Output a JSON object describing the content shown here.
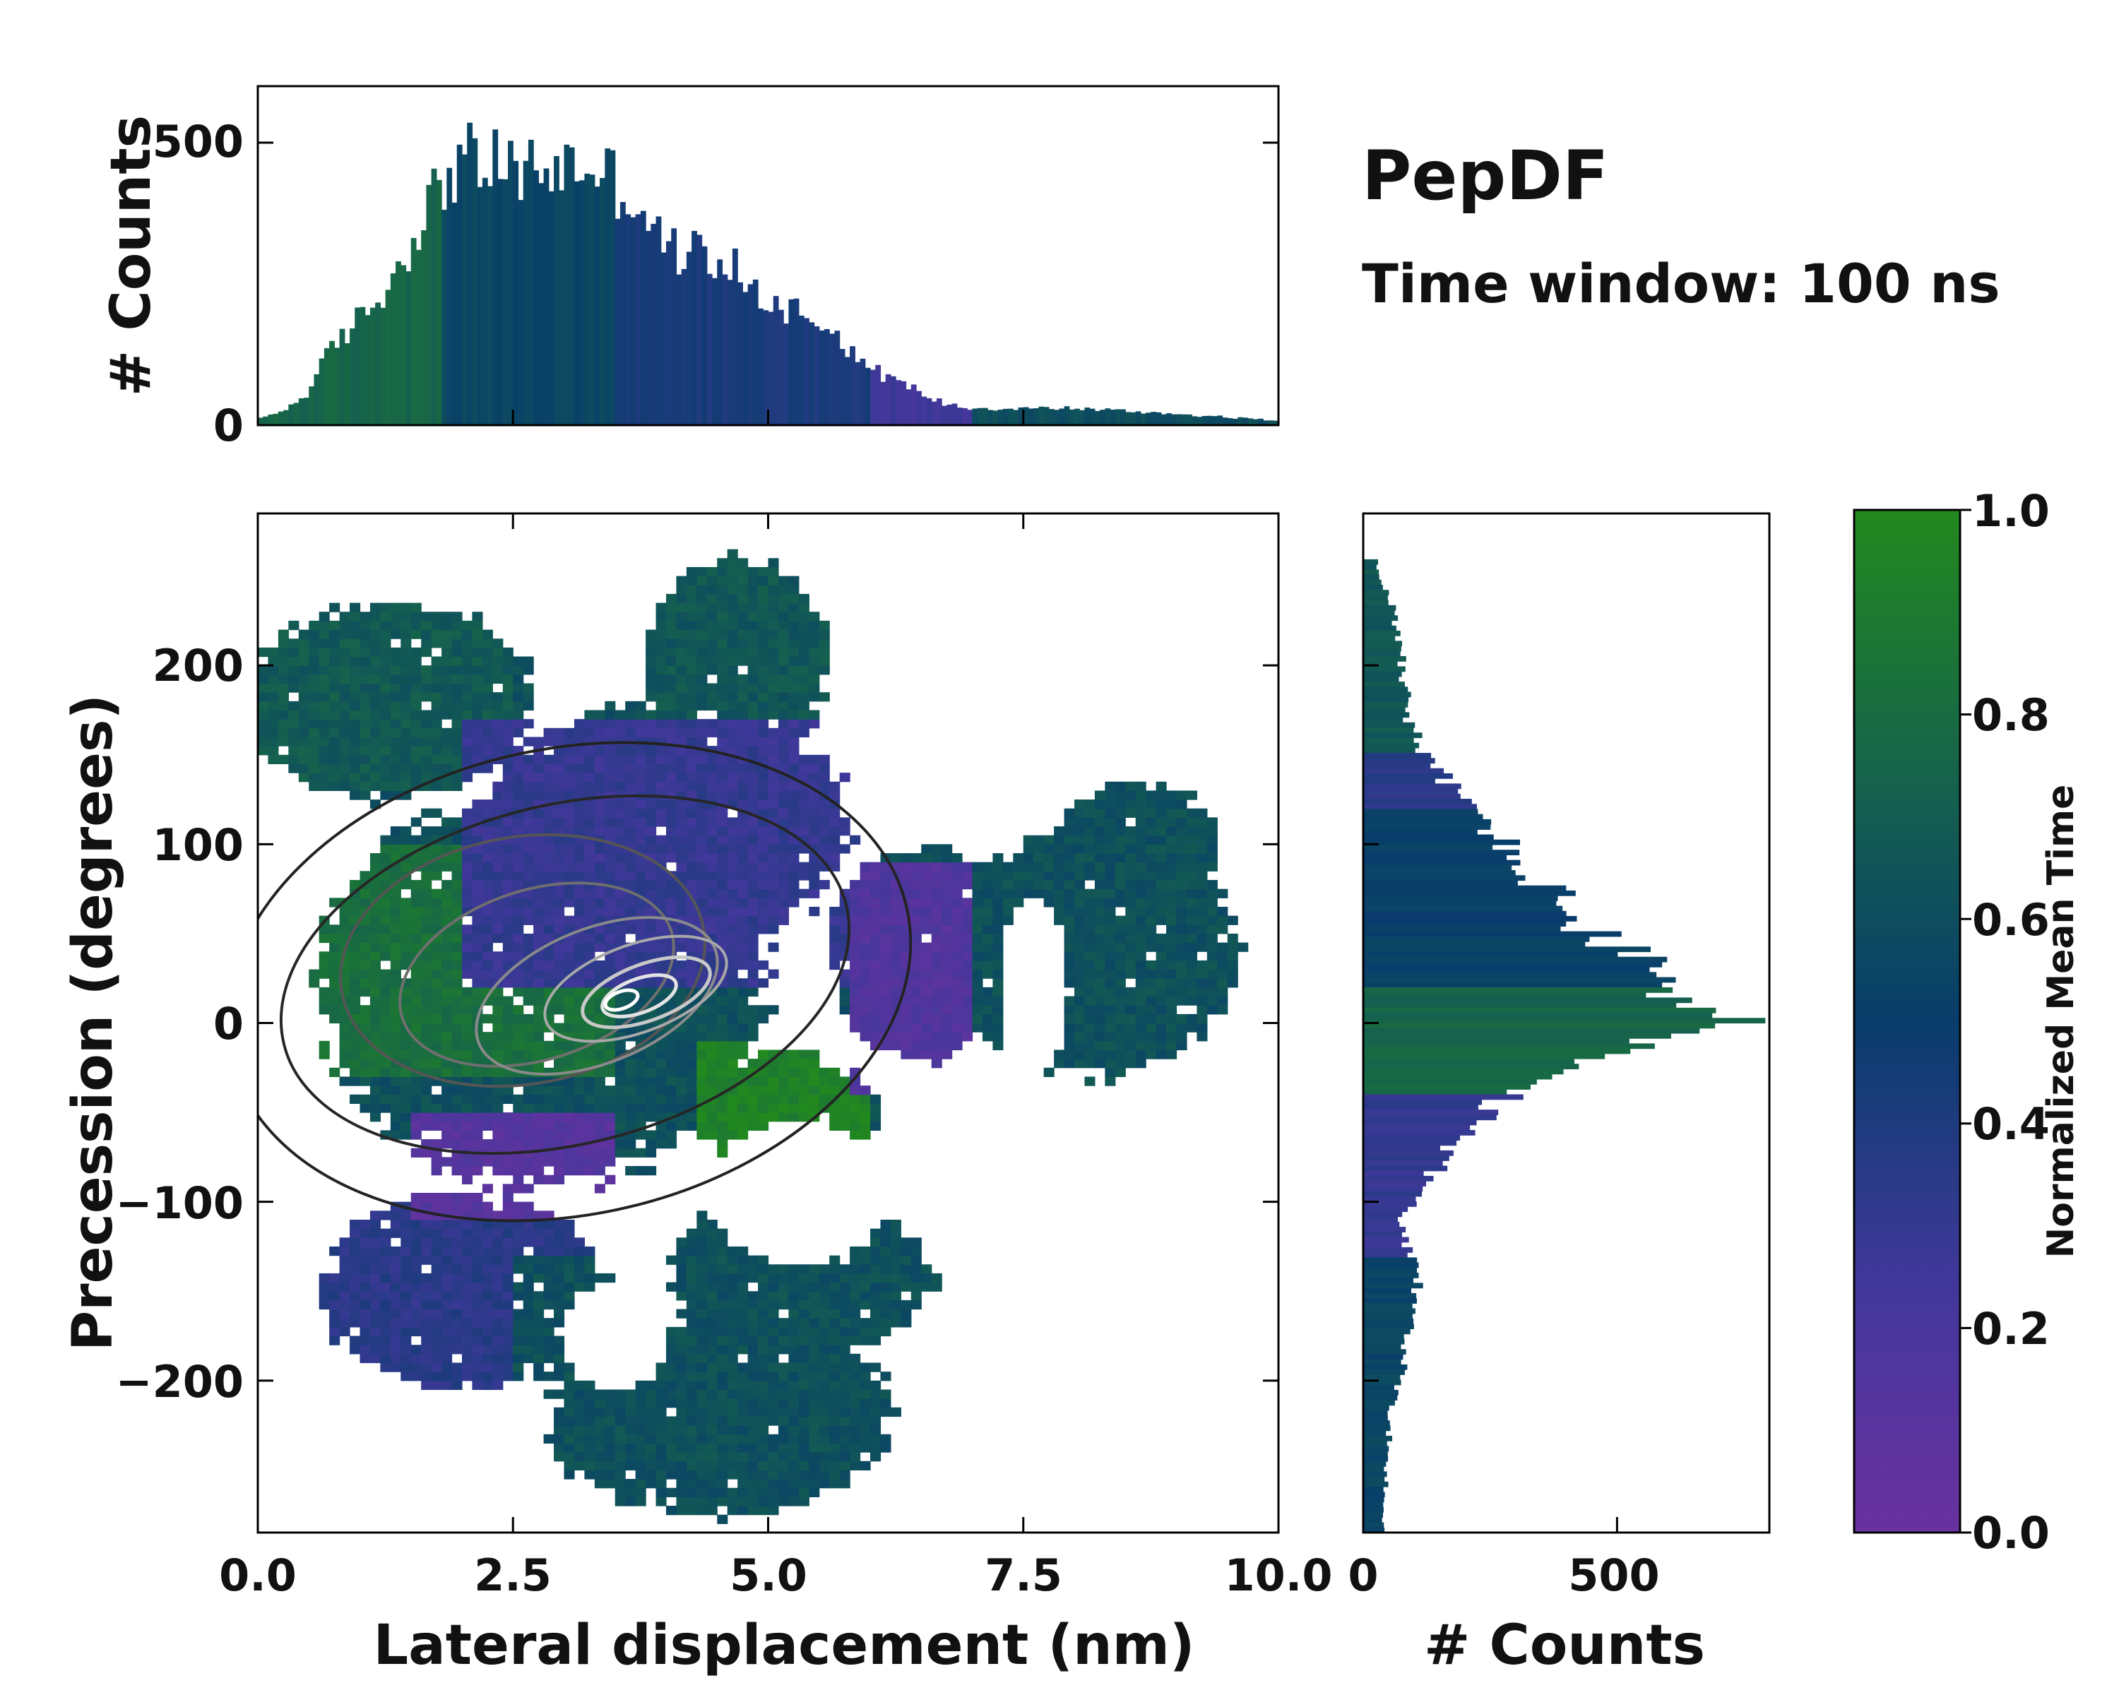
{
  "title": "PepDF",
  "subtitle": "Time window: 100 ns",
  "colors": {
    "cmap_low": "#6a31a0",
    "cmap_mid": "#083d6b",
    "cmap_high": "#22891e",
    "frame": "#000000"
  },
  "chart_data": [
    {
      "id": "top-histogram",
      "type": "bar",
      "title": "",
      "xlabel": "",
      "ylabel": "# Counts",
      "xlim": [
        0,
        10
      ],
      "ylim": [
        0,
        600
      ],
      "yticks": [
        0,
        500
      ],
      "bins": 200,
      "series": [
        {
          "name": "lateral displacement counts",
          "x_knots": [
            0.0,
            0.3,
            0.5,
            0.7,
            1.0,
            1.3,
            1.5,
            1.8,
            2.0,
            2.5,
            3.0,
            3.3,
            3.7,
            4.0,
            4.5,
            5.0,
            5.5,
            6.0,
            6.3,
            6.7,
            7.0,
            8.0,
            9.0,
            10.0
          ],
          "y_knots": [
            10,
            30,
            60,
            130,
            190,
            250,
            330,
            430,
            470,
            450,
            455,
            460,
            400,
            310,
            300,
            220,
            190,
            100,
            75,
            40,
            30,
            30,
            20,
            8
          ]
        }
      ]
    },
    {
      "id": "main-2d-histogram",
      "type": "heatmap",
      "title": "",
      "xlabel": "Lateral displacement (nm)",
      "ylabel": "Precession (degrees)",
      "xlim": [
        0,
        10
      ],
      "ylim": [
        -285,
        285
      ],
      "xticks": [
        0.0,
        2.5,
        5.0,
        7.5,
        10.0
      ],
      "xtick_labels": [
        "0.0",
        "2.5",
        "5.0",
        "7.5",
        "10.0"
      ],
      "yticks": [
        -200,
        -100,
        0,
        100,
        200
      ],
      "ytick_labels": [
        "−200",
        "−100",
        "0",
        "100",
        "200"
      ],
      "regions": [
        {
          "name": "upper-left",
          "x": [
            0.0,
            2.5
          ],
          "y": [
            130,
            235
          ],
          "mean_time": 0.68
        },
        {
          "name": "upper-middle",
          "x": [
            3.7,
            5.6
          ],
          "y": [
            140,
            260
          ],
          "mean_time": 0.66
        },
        {
          "name": "left-core",
          "x": [
            0.5,
            3.5
          ],
          "y": [
            -30,
            100
          ],
          "mean_time": 0.82
        },
        {
          "name": "central-band",
          "x": [
            2.0,
            6.0
          ],
          "y": [
            20,
            170
          ],
          "mean_time": 0.3
        },
        {
          "name": "lower-green",
          "x": [
            4.3,
            6.0
          ],
          "y": [
            -85,
            -10
          ],
          "mean_time": 0.95
        },
        {
          "name": "right-purple",
          "x": [
            5.8,
            7.2
          ],
          "y": [
            -40,
            90
          ],
          "mean_time": 0.15
        },
        {
          "name": "right-wing",
          "x": [
            7.0,
            10.0
          ],
          "y": [
            -60,
            130
          ],
          "mean_time": 0.62
        },
        {
          "name": "lower-left",
          "x": [
            0.5,
            3.5
          ],
          "y": [
            -210,
            -100
          ],
          "mean_time": 0.35
        },
        {
          "name": "lower-purple",
          "x": [
            1.5,
            3.5
          ],
          "y": [
            -110,
            -50
          ],
          "mean_time": 0.12
        },
        {
          "name": "bottom-tail",
          "x": [
            2.5,
            6.5
          ],
          "y": [
            -285,
            -130
          ],
          "mean_time": 0.62
        }
      ],
      "density_peak": {
        "x": 3.6,
        "y": 10
      }
    },
    {
      "id": "right-histogram",
      "type": "bar",
      "orientation": "horizontal",
      "title": "",
      "xlabel": "# Counts",
      "ylabel": "",
      "xlim": [
        0,
        800
      ],
      "ylim": [
        -285,
        285
      ],
      "xticks": [
        0,
        500
      ],
      "xtick_labels": [
        "0",
        "500"
      ],
      "bins": 200,
      "series": [
        {
          "name": "precession counts",
          "y_knots": [
            -285,
            -250,
            -220,
            -200,
            -150,
            -110,
            -80,
            -60,
            -40,
            -25,
            -10,
            0,
            15,
            30,
            50,
            70,
            90,
            110,
            130,
            150,
            170,
            200,
            230,
            255
          ],
          "x_knots": [
            40,
            45,
            55,
            70,
            110,
            70,
            150,
            200,
            280,
            380,
            560,
            720,
            650,
            560,
            450,
            380,
            300,
            250,
            180,
            120,
            90,
            80,
            60,
            30
          ]
        }
      ]
    },
    {
      "id": "colorbar",
      "type": "colorbar",
      "label": "Normalized Mean Time",
      "range": [
        0.0,
        1.0
      ],
      "ticks": [
        0.0,
        0.2,
        0.4,
        0.6,
        0.8,
        1.0
      ],
      "tick_labels": [
        "0.0",
        "0.2",
        "0.4",
        "0.6",
        "0.8",
        "1.0"
      ]
    }
  ]
}
